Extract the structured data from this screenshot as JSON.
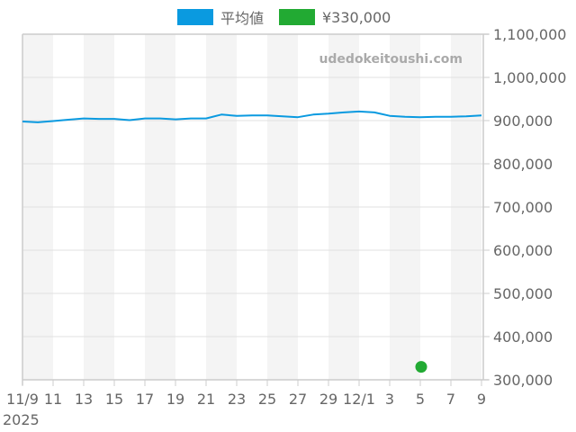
{
  "legend": {
    "items": [
      {
        "label": "平均値",
        "color": "#0a9ae0"
      },
      {
        "label": "¥330,000",
        "color": "#22aa33"
      }
    ]
  },
  "watermark": "udedokeitoushi.com",
  "axis": {
    "y_ticks": [
      "1,100,000",
      "1,000,000",
      "900,000",
      "800,000",
      "700,000",
      "600,000",
      "500,000",
      "400,000",
      "300,000"
    ],
    "x_ticks": [
      "11/9",
      "11",
      "13",
      "15",
      "17",
      "19",
      "21",
      "23",
      "25",
      "27",
      "29",
      "12/1",
      "3",
      "5",
      "7",
      "9"
    ],
    "x_year": "2025"
  },
  "chart_data": {
    "type": "line",
    "title": "",
    "xlabel": "",
    "ylabel": "",
    "ylim": [
      300000,
      1100000
    ],
    "y_ticks": [
      300000,
      400000,
      500000,
      600000,
      700000,
      800000,
      900000,
      1000000,
      1100000
    ],
    "x_tick_labels": [
      "11/9",
      "11",
      "13",
      "15",
      "17",
      "19",
      "21",
      "23",
      "25",
      "27",
      "29",
      "12/1",
      "3",
      "5",
      "7",
      "9"
    ],
    "x_year_label": "2025",
    "grid": true,
    "legend_position": "top",
    "x": [
      "2025-11-09",
      "2025-11-10",
      "2025-11-11",
      "2025-11-12",
      "2025-11-13",
      "2025-11-14",
      "2025-11-15",
      "2025-11-16",
      "2025-11-17",
      "2025-11-18",
      "2025-11-19",
      "2025-11-20",
      "2025-11-21",
      "2025-11-22",
      "2025-11-23",
      "2025-11-24",
      "2025-11-25",
      "2025-11-26",
      "2025-11-27",
      "2025-11-28",
      "2025-11-29",
      "2025-11-30",
      "2025-12-01",
      "2025-12-02",
      "2025-12-03",
      "2025-12-04",
      "2025-12-05",
      "2025-12-06",
      "2025-12-07",
      "2025-12-08",
      "2025-12-09"
    ],
    "series": [
      {
        "name": "平均値",
        "type": "line",
        "color": "#0a9ae0",
        "values": [
          898000,
          896000,
          899000,
          902000,
          905000,
          904000,
          904000,
          901000,
          905000,
          905000,
          903000,
          905000,
          905000,
          914000,
          911000,
          912000,
          912000,
          910000,
          908000,
          914000,
          916000,
          919000,
          921000,
          919000,
          911000,
          909000,
          908000,
          909000,
          909000,
          910000,
          912000
        ]
      },
      {
        "name": "¥330,000",
        "type": "scatter",
        "color": "#22aa33",
        "points": [
          {
            "x": "2025-12-05",
            "y": 330000
          }
        ]
      }
    ],
    "annotations": [
      "udedokeitoushi.com"
    ]
  }
}
